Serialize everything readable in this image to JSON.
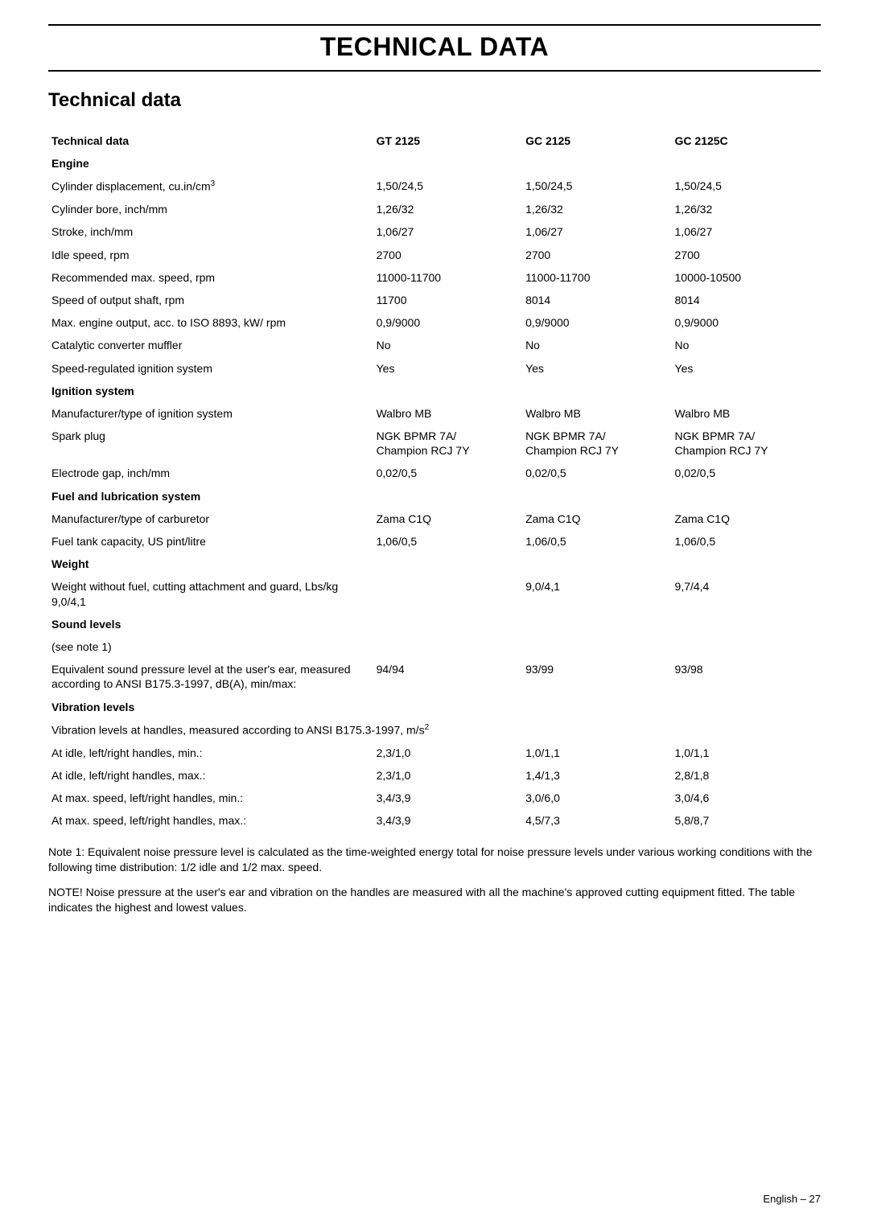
{
  "page_title": "TECHNICAL DATA",
  "section_title": "Technical data",
  "columns": {
    "label_header": "Technical data",
    "c1": "GT 2125",
    "c2": "GC 2125",
    "c3": "GC 2125C"
  },
  "sections": {
    "engine": "Engine",
    "ignition": "Ignition system",
    "fuel": "Fuel and lubrication system",
    "weight": "Weight",
    "sound": "Sound levels",
    "vibration": "Vibration levels"
  },
  "rows": {
    "cyl_disp_label": "Cylinder displacement, cu.in/cm",
    "cyl_disp_sup": "3",
    "cyl_disp": {
      "c1": "1,50/24,5",
      "c2": "1,50/24,5",
      "c3": "1,50/24,5"
    },
    "cyl_bore_label": "Cylinder bore, inch/mm",
    "cyl_bore": {
      "c1": "1,26/32",
      "c2": "1,26/32",
      "c3": "1,26/32"
    },
    "stroke_label": "Stroke, inch/mm",
    "stroke": {
      "c1": "1,06/27",
      "c2": "1,06/27",
      "c3": "1,06/27"
    },
    "idle_label": "Idle speed, rpm",
    "idle": {
      "c1": "2700",
      "c2": "2700",
      "c3": "2700"
    },
    "maxspeed_label": "Recommended max. speed, rpm",
    "maxspeed": {
      "c1": "11000-11700",
      "c2": "11000-11700",
      "c3": "10000-10500"
    },
    "shaft_label": "Speed of output shaft, rpm",
    "shaft": {
      "c1": "11700",
      "c2": "8014",
      "c3": "8014"
    },
    "maxout_label": "Max. engine output, acc. to ISO 8893, kW/ rpm",
    "maxout": {
      "c1": "0,9/9000",
      "c2": "0,9/9000",
      "c3": "0,9/9000"
    },
    "cat_label": "Catalytic converter muffler",
    "cat": {
      "c1": "No",
      "c2": "No",
      "c3": "No"
    },
    "speedreg_label": "Speed-regulated ignition system",
    "speedreg": {
      "c1": "Yes",
      "c2": "Yes",
      "c3": "Yes"
    },
    "ignman_label": "Manufacturer/type of ignition system",
    "ignman": {
      "c1": "Walbro MB",
      "c2": "Walbro MB",
      "c3": "Walbro MB"
    },
    "spark_label": "Spark plug",
    "spark": {
      "c1a": "NGK BPMR 7A/",
      "c1b": "Champion RCJ 7Y",
      "c2a": "NGK BPMR 7A/",
      "c2b": "Champion RCJ 7Y",
      "c3a": "NGK BPMR 7A/",
      "c3b": "Champion RCJ 7Y"
    },
    "gap_label": "Electrode gap, inch/mm",
    "gap": {
      "c1": "0,02/0,5",
      "c2": "0,02/0,5",
      "c3": "0,02/0,5"
    },
    "carb_label": "Manufacturer/type of carburetor",
    "carb": {
      "c1": "Zama C1Q",
      "c2": "Zama C1Q",
      "c3": "Zama C1Q"
    },
    "tank_label": "Fuel tank capacity, US pint/litre",
    "tank": {
      "c1": "1,06/0,5",
      "c2": "1,06/0,5",
      "c3": "1,06/0,5"
    },
    "weight_label": "Weight without fuel, cutting attachment and guard, Lbs/kg",
    "weight": {
      "c1": "9,0/4,1",
      "c2": "9,0/4,1",
      "c3": "9,7/4,4"
    },
    "seenote_label": "(see note 1)",
    "sound_eq_label": "Equivalent sound pressure level at the user's ear, measured according to ANSI  B175.3-1997, dB(A), min/max:",
    "sound_eq": {
      "c1": "94/94",
      "c2": "93/99",
      "c3": "93/98"
    },
    "vib_desc_label_a": "Vibration levels at handles, measured according to ANSI B175.3-1997, m/s",
    "vib_desc_sup": "2",
    "idle_min_label": "At idle, left/right handles, min.:",
    "idle_min": {
      "c1": "2,3/1,0",
      "c2": "1,0/1,1",
      "c3": "1,0/1,1"
    },
    "idle_max_label": "At idle, left/right handles, max.:",
    "idle_max": {
      "c1": "2,3/1,0",
      "c2": "1,4/1,3",
      "c3": "2,8/1,8"
    },
    "max_min_label": "At max. speed, left/right handles, min.:",
    "max_min": {
      "c1": "3,4/3,9",
      "c2": "3,0/6,0",
      "c3": "3,0/4,6"
    },
    "max_max_label": "At max. speed, left/right handles, max.:",
    "max_max": {
      "c1": "3,4/3,9",
      "c2": "4,5/7,3",
      "c3": "5,8/8,7"
    }
  },
  "notes": {
    "n1": "Note 1: Equivalent noise pressure level is calculated as the time-weighted energy total for noise pressure levels under various working conditions with the following time distribution: 1/2 idle and 1/2 max. speed.",
    "n2": "NOTE! Noise pressure at the user's ear and vibration on the handles are measured with all the machine's approved cutting equipment fitted. The table indicates the highest and lowest values."
  },
  "footer": {
    "lang": "English",
    "sep": " – ",
    "page": "27"
  }
}
